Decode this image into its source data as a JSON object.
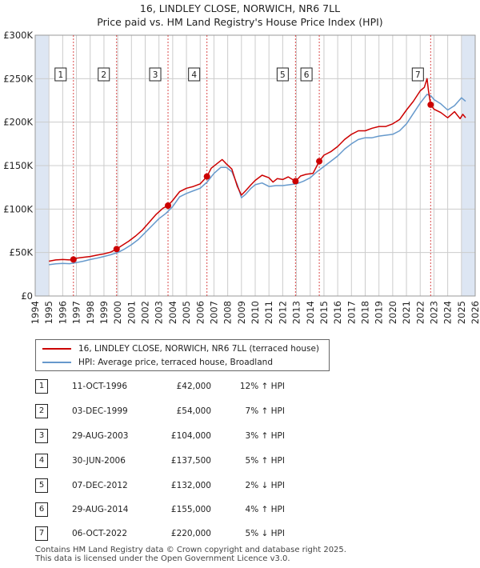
{
  "title": {
    "line1": "16, LINDLEY CLOSE, NORWICH, NR6 7LL",
    "line2": "Price paid vs. HM Land Registry's House Price Index (HPI)"
  },
  "colors": {
    "price": "#cc0000",
    "hpi": "#6699cc",
    "shade": "#dde6f3",
    "grid": "#cccccc",
    "marker_line": "#cc0000"
  },
  "chart_data": {
    "type": "line",
    "title": "Price paid vs. HM Land Registry's House Price Index (HPI)",
    "xlabel": "",
    "ylabel": "",
    "xlim": [
      1994,
      2026
    ],
    "ylim": [
      0,
      300000
    ],
    "y_ticks": [
      {
        "value": 0,
        "label": "£0"
      },
      {
        "value": 50000,
        "label": "£50K"
      },
      {
        "value": 100000,
        "label": "£100K"
      },
      {
        "value": 150000,
        "label": "£150K"
      },
      {
        "value": 200000,
        "label": "£200K"
      },
      {
        "value": 250000,
        "label": "£250K"
      },
      {
        "value": 300000,
        "label": "£300K"
      }
    ],
    "x_ticks": [
      "1994",
      "1995",
      "1996",
      "1997",
      "1998",
      "1999",
      "2000",
      "2001",
      "2002",
      "2003",
      "2004",
      "2005",
      "2006",
      "2007",
      "2008",
      "2009",
      "2010",
      "2011",
      "2012",
      "2013",
      "2014",
      "2015",
      "2016",
      "2017",
      "2018",
      "2019",
      "2020",
      "2021",
      "2022",
      "2023",
      "2024",
      "2025",
      "2026"
    ],
    "shaded_ranges": [
      [
        1994,
        1995
      ],
      [
        2025,
        2026
      ]
    ],
    "series": [
      {
        "name": "16, LINDLEY CLOSE, NORWICH, NR6 7LL (terraced house)",
        "color": "#cc0000",
        "x": [
          1995.0,
          1995.5,
          1996.0,
          1996.5,
          1996.78,
          1997.0,
          1997.5,
          1998.0,
          1998.5,
          1999.0,
          1999.5,
          1999.92,
          2000.3,
          2000.8,
          2001.3,
          2001.8,
          2002.3,
          2002.8,
          2003.3,
          2003.66,
          2004.0,
          2004.5,
          2005.0,
          2005.5,
          2006.0,
          2006.49,
          2006.8,
          2007.2,
          2007.6,
          2007.9,
          2008.3,
          2008.7,
          2009.0,
          2009.3,
          2009.7,
          2010.0,
          2010.5,
          2011.0,
          2011.3,
          2011.6,
          2012.0,
          2012.4,
          2012.93,
          2013.3,
          2013.7,
          2014.2,
          2014.66,
          2015.0,
          2015.5,
          2016.0,
          2016.5,
          2017.0,
          2017.5,
          2018.0,
          2018.5,
          2019.0,
          2019.5,
          2020.0,
          2020.5,
          2021.0,
          2021.5,
          2022.0,
          2022.3,
          2022.5,
          2022.6,
          2022.76,
          2023.0,
          2023.5,
          2024.0,
          2024.5,
          2024.9,
          2025.1,
          2025.3
        ],
        "values": [
          40000,
          41500,
          42000,
          41500,
          42000,
          43500,
          44500,
          45500,
          47000,
          48500,
          50500,
          54000,
          58000,
          63000,
          69000,
          76000,
          85000,
          94000,
          101000,
          104000,
          110000,
          120000,
          124000,
          126000,
          129000,
          137500,
          147000,
          152000,
          157000,
          152000,
          146000,
          126000,
          116000,
          121000,
          128000,
          133000,
          139000,
          136000,
          131000,
          135000,
          134000,
          137000,
          132000,
          138000,
          140000,
          141000,
          155000,
          162000,
          166000,
          172000,
          180000,
          186000,
          190000,
          190000,
          193000,
          195000,
          195000,
          198000,
          203000,
          214000,
          224000,
          236000,
          240000,
          250000,
          236000,
          220000,
          215000,
          211000,
          205000,
          212000,
          204000,
          209000,
          205000
        ]
      },
      {
        "name": "HPI: Average price, terraced house, Broadland",
        "color": "#6699cc",
        "x": [
          1995.0,
          1995.5,
          1996.0,
          1996.5,
          1997.0,
          1997.5,
          1998.0,
          1998.5,
          1999.0,
          1999.5,
          2000.0,
          2000.5,
          2001.0,
          2001.5,
          2002.0,
          2002.5,
          2003.0,
          2003.5,
          2004.0,
          2004.5,
          2005.0,
          2005.5,
          2006.0,
          2006.5,
          2007.0,
          2007.5,
          2007.9,
          2008.3,
          2008.7,
          2009.0,
          2009.3,
          2009.7,
          2010.0,
          2010.5,
          2011.0,
          2011.5,
          2012.0,
          2012.5,
          2013.0,
          2013.5,
          2014.0,
          2014.5,
          2015.0,
          2015.5,
          2016.0,
          2016.5,
          2017.0,
          2017.5,
          2018.0,
          2018.5,
          2019.0,
          2019.5,
          2020.0,
          2020.5,
          2021.0,
          2021.5,
          2022.0,
          2022.5,
          2022.8,
          2023.0,
          2023.5,
          2024.0,
          2024.5,
          2025.0,
          2025.3
        ],
        "values": [
          36000,
          37000,
          37500,
          37200,
          38500,
          40000,
          42000,
          43500,
          45500,
          47500,
          50000,
          54000,
          59000,
          65000,
          73000,
          81000,
          89000,
          95000,
          103000,
          114000,
          118000,
          121000,
          124000,
          131000,
          141000,
          148000,
          148000,
          143000,
          128000,
          113000,
          117000,
          124000,
          128000,
          130000,
          126000,
          127000,
          127000,
          128000,
          129000,
          132000,
          136000,
          143000,
          149000,
          155000,
          161000,
          169000,
          175000,
          180000,
          182000,
          182000,
          184000,
          185000,
          186000,
          190000,
          198000,
          210000,
          222000,
          232000,
          230000,
          226000,
          221000,
          214000,
          219000,
          228000,
          224000
        ]
      }
    ],
    "sales": [
      {
        "n": "1",
        "x": 1996.78,
        "value": 42000
      },
      {
        "n": "2",
        "x": 1999.92,
        "value": 54000
      },
      {
        "n": "3",
        "x": 2003.66,
        "value": 104000
      },
      {
        "n": "4",
        "x": 2006.49,
        "value": 137500
      },
      {
        "n": "5",
        "x": 2012.93,
        "value": 132000
      },
      {
        "n": "6",
        "x": 2014.66,
        "value": 155000
      },
      {
        "n": "7",
        "x": 2022.76,
        "value": 220000
      }
    ]
  },
  "legend": {
    "price_label": "16, LINDLEY CLOSE, NORWICH, NR6 7LL (terraced house)",
    "hpi_label": "HPI: Average price, terraced house, Broadland"
  },
  "table": [
    {
      "n": "1",
      "date": "11-OCT-1996",
      "price": "£42,000",
      "hpi": "12% ↑ HPI"
    },
    {
      "n": "2",
      "date": "03-DEC-1999",
      "price": "£54,000",
      "hpi": "7% ↑ HPI"
    },
    {
      "n": "3",
      "date": "29-AUG-2003",
      "price": "£104,000",
      "hpi": "3% ↑ HPI"
    },
    {
      "n": "4",
      "date": "30-JUN-2006",
      "price": "£137,500",
      "hpi": "5% ↑ HPI"
    },
    {
      "n": "5",
      "date": "07-DEC-2012",
      "price": "£132,000",
      "hpi": "2% ↓ HPI"
    },
    {
      "n": "6",
      "date": "29-AUG-2014",
      "price": "£155,000",
      "hpi": "4% ↑ HPI"
    },
    {
      "n": "7",
      "date": "06-OCT-2022",
      "price": "£220,000",
      "hpi": "5% ↓ HPI"
    }
  ],
  "footer": {
    "line1": "Contains HM Land Registry data © Crown copyright and database right 2025.",
    "line2": "This data is licensed under the Open Government Licence v3.0."
  }
}
